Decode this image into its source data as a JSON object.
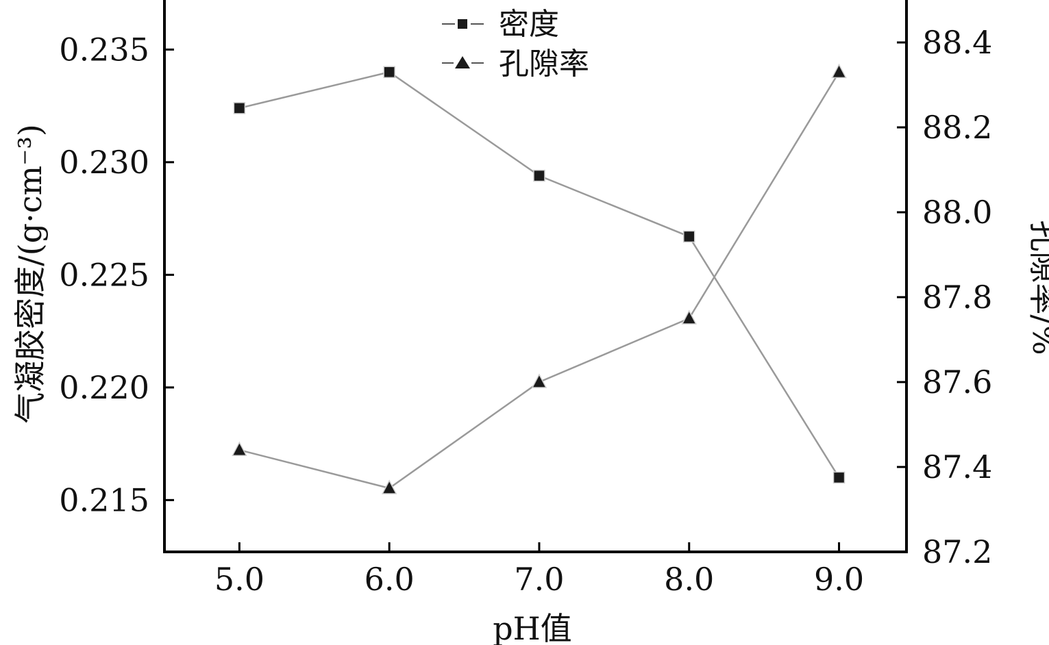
{
  "chart_data": {
    "type": "line",
    "title": "",
    "xlabel": "pH值",
    "ylabel_left": "气凝胶密度/(g·cm⁻³)",
    "ylabel_right": "孔隙率/%",
    "x": [
      5.0,
      6.0,
      7.0,
      8.0,
      9.0
    ],
    "x_tick_labels": [
      "5.0",
      "6.0",
      "7.0",
      "8.0",
      "9.0"
    ],
    "xlim": [
      4.5,
      9.45
    ],
    "ylim_left": [
      0.2127,
      0.2372
    ],
    "ylim_right": [
      87.2,
      88.5
    ],
    "y_left_tick_labels": [
      "0.215",
      "0.220",
      "0.225",
      "0.230",
      "0.235"
    ],
    "y_left_ticks": [
      0.215,
      0.22,
      0.225,
      0.23,
      0.235
    ],
    "y_right_tick_labels": [
      "87.2",
      "87.4",
      "87.6",
      "87.8",
      "88.0",
      "88.2",
      "88.4"
    ],
    "y_right_ticks": [
      87.2,
      87.4,
      87.6,
      87.8,
      88.0,
      88.2,
      88.4
    ],
    "grid": false,
    "legend_position": "top-center",
    "series": [
      {
        "name": "密度",
        "axis": "left",
        "marker": "square",
        "values": [
          0.2324,
          0.234,
          0.2294,
          0.2267,
          0.216
        ]
      },
      {
        "name": "孔隙率",
        "axis": "right",
        "marker": "triangle",
        "values": [
          87.44,
          87.35,
          87.6,
          87.75,
          88.33
        ]
      }
    ],
    "colors": {
      "line": "#9a9a9a",
      "marker": "#1a1a1a",
      "axis": "#000000"
    }
  }
}
